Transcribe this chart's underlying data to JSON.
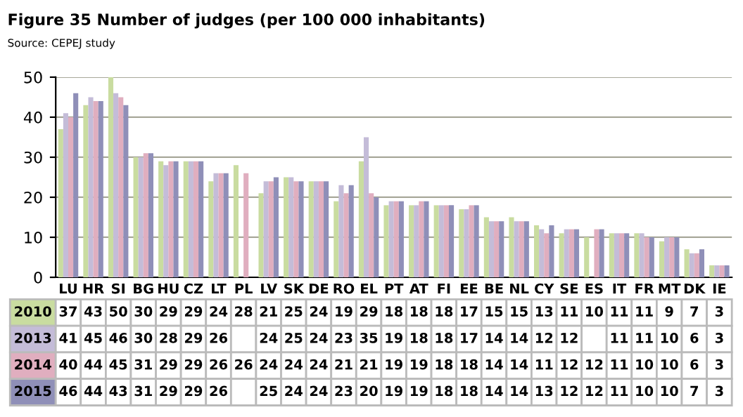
{
  "chart_data": {
    "type": "bar",
    "title": "Figure 35 Number of judges (per 100 000 inhabitants)",
    "subtitle": "Source: CEPEJ study",
    "categories": [
      "LU",
      "HR",
      "SI",
      "BG",
      "HU",
      "CZ",
      "LT",
      "PL",
      "LV",
      "SK",
      "DE",
      "RO",
      "EL",
      "PT",
      "AT",
      "FI",
      "EE",
      "BE",
      "NL",
      "CY",
      "SE",
      "ES",
      "IT",
      "FR",
      "MT",
      "DK",
      "IE"
    ],
    "series": [
      {
        "name": "2010",
        "color": "#c9dca0",
        "values": [
          37,
          43,
          50,
          30,
          29,
          29,
          24,
          28,
          21,
          25,
          24,
          19,
          29,
          18,
          18,
          18,
          17,
          15,
          15,
          13,
          11,
          10,
          11,
          11,
          9,
          7,
          3
        ]
      },
      {
        "name": "2013",
        "color": "#c4bcd8",
        "values": [
          41,
          45,
          46,
          30,
          28,
          29,
          26,
          null,
          24,
          25,
          24,
          23,
          35,
          19,
          18,
          18,
          17,
          14,
          14,
          12,
          12,
          null,
          11,
          11,
          10,
          6,
          3
        ]
      },
      {
        "name": "2014",
        "color": "#e0aebf",
        "values": [
          40,
          44,
          45,
          31,
          29,
          29,
          26,
          26,
          24,
          24,
          24,
          21,
          21,
          19,
          19,
          18,
          18,
          14,
          14,
          11,
          12,
          12,
          11,
          10,
          10,
          6,
          3
        ]
      },
      {
        "name": "2015",
        "color": "#8f8fb8",
        "values": [
          46,
          44,
          43,
          31,
          29,
          29,
          26,
          null,
          25,
          24,
          24,
          23,
          20,
          19,
          19,
          18,
          18,
          14,
          14,
          13,
          12,
          12,
          11,
          10,
          10,
          7,
          3
        ]
      }
    ],
    "ylim": [
      0,
      50
    ],
    "yticks": [
      0,
      10,
      20,
      30,
      40,
      50
    ],
    "grid": "y",
    "data_labels": true,
    "legend": "bottom"
  }
}
